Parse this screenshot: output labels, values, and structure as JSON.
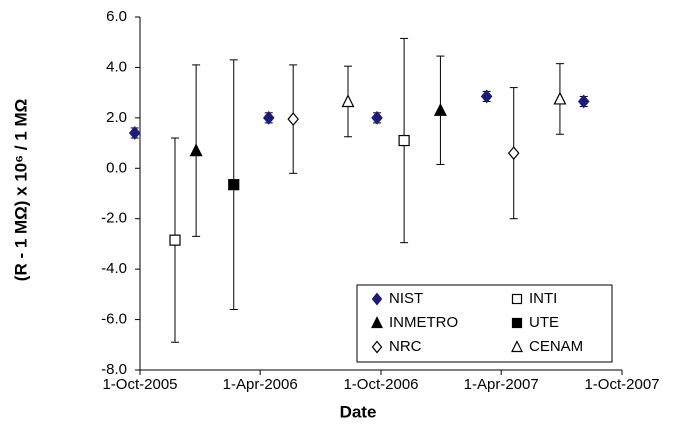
{
  "chart_data": {
    "type": "scatter",
    "x_label": "Date",
    "y_label": "(R - 1 MΩ) x 10⁶ / 1 MΩ",
    "xlim": [
      "2005-10-01",
      "2007-10-01"
    ],
    "xticks": [
      {
        "value": "2005-10-01",
        "label": "1-Oct-2005"
      },
      {
        "value": "2006-04-01",
        "label": "1-Apr-2006"
      },
      {
        "value": "2006-10-01",
        "label": "1-Oct-2006"
      },
      {
        "value": "2007-04-01",
        "label": "1-Apr-2007"
      },
      {
        "value": "2007-10-01",
        "label": "1-Oct-2007"
      }
    ],
    "ylim": [
      -8,
      6
    ],
    "yticks": [
      {
        "value": -8,
        "label": "-8.0"
      },
      {
        "value": -6,
        "label": "-6.0"
      },
      {
        "value": -4,
        "label": "-4.0"
      },
      {
        "value": -2,
        "label": "-2.0"
      },
      {
        "value": 0,
        "label": "0.0"
      },
      {
        "value": 2,
        "label": "2.0"
      },
      {
        "value": 4,
        "label": "4.0"
      },
      {
        "value": 6,
        "label": "6.0"
      }
    ],
    "grid": false,
    "legend": "lower right",
    "series": [
      {
        "name": "NIST",
        "marker": "diamond",
        "filled": true,
        "color": "#1c1c78",
        "x": [
          "2005-09-23",
          "2006-04-14",
          "2006-09-25",
          "2007-03-10",
          "2007-08-04"
        ],
        "values": [
          1.4,
          2.0,
          2.0,
          2.85,
          2.65
        ],
        "errors": [
          0.2,
          0.2,
          0.2,
          0.2,
          0.2
        ]
      },
      {
        "name": "INTI",
        "marker": "square",
        "filled": false,
        "color": "#000000",
        "x": [
          "2005-11-23",
          "2006-11-05"
        ],
        "values": [
          -2.85,
          1.1
        ],
        "errors": [
          4.05,
          4.05
        ]
      },
      {
        "name": "INMETRO",
        "marker": "triangle",
        "filled": true,
        "color": "#000000",
        "x": [
          "2005-12-25",
          "2006-12-30"
        ],
        "values": [
          0.7,
          2.3
        ],
        "errors": [
          3.4,
          2.15
        ]
      },
      {
        "name": "UTE",
        "marker": "square",
        "filled": true,
        "color": "#000000",
        "x": [
          "2006-02-20"
        ],
        "values": [
          -0.65
        ],
        "errors": [
          4.95
        ]
      },
      {
        "name": "NRC",
        "marker": "diamond",
        "filled": false,
        "color": "#000000",
        "x": [
          "2006-05-21",
          "2007-04-20"
        ],
        "values": [
          1.95,
          0.6
        ],
        "errors": [
          2.15,
          2.6
        ]
      },
      {
        "name": "CENAM",
        "marker": "triangle",
        "filled": false,
        "color": "#000000",
        "x": [
          "2006-08-12",
          "2007-06-29"
        ],
        "values": [
          2.65,
          2.75
        ],
        "errors": [
          1.4,
          1.4
        ]
      }
    ]
  }
}
